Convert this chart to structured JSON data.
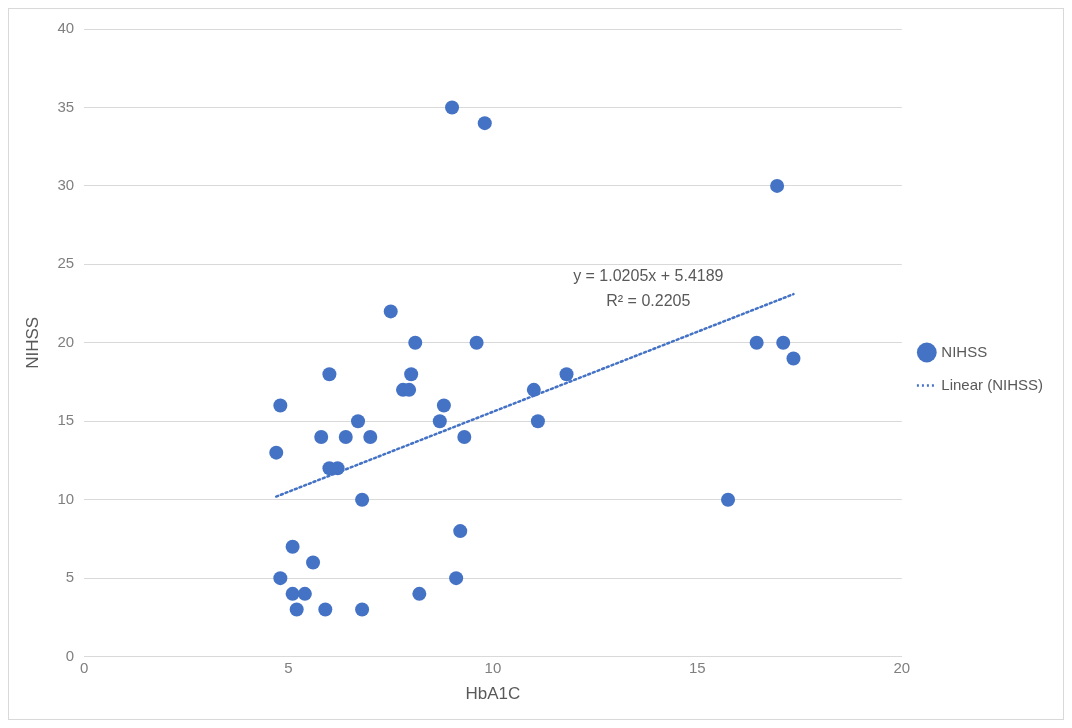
{
  "chart_data": {
    "type": "scatter",
    "xlabel": "HbA1C",
    "ylabel": "NIHSS",
    "xlim": [
      0,
      20
    ],
    "xticks": [
      0,
      5,
      10,
      15,
      20
    ],
    "ylim": [
      0,
      40
    ],
    "yticks": [
      0,
      5,
      10,
      15,
      20,
      25,
      30,
      35,
      40
    ],
    "grid": "y",
    "legend": "right",
    "marker": "circle",
    "annotations": [
      "y = 1.0205x + 5.4189",
      "R² = 0.2205"
    ],
    "series": [
      {
        "name": "NIHSS",
        "color": "#4472c4",
        "x": [
          4.7,
          4.8,
          4.8,
          5.1,
          5.1,
          5.2,
          5.4,
          5.6,
          5.8,
          5.9,
          6.0,
          6.0,
          6.2,
          6.4,
          6.7,
          6.8,
          6.8,
          7.0,
          7.5,
          7.8,
          8.0,
          7.95,
          8.1,
          8.2,
          8.7,
          8.8,
          9.0,
          9.1,
          9.2,
          9.3,
          9.6,
          9.8,
          11.0,
          11.1,
          11.8,
          15.75,
          16.45,
          16.95,
          17.1,
          17.35
        ],
        "values": [
          13,
          16,
          5,
          7,
          4,
          3,
          4,
          6,
          14,
          3,
          18,
          12,
          12,
          14,
          15,
          10,
          3,
          14,
          22,
          17,
          18,
          17,
          20,
          4,
          15,
          16,
          35,
          5,
          8,
          14,
          20,
          34,
          17,
          15,
          18,
          10,
          20,
          30,
          20,
          19
        ]
      },
      {
        "name": "Linear (NIHSS)",
        "type": "line",
        "color": "#4472c4",
        "line_style": "dotted",
        "marker": "none",
        "x": [
          4.7,
          17.35
        ],
        "values": [
          10.2,
          23.1
        ]
      }
    ]
  }
}
